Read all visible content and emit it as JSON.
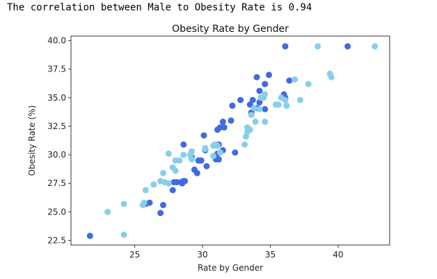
{
  "output_text": "The correlation between Male to Obesity Rate is 0.94",
  "colors": {
    "series_a": "#4169e1",
    "series_b": "#87ceeb",
    "axes": "#333333"
  },
  "chart_data": {
    "type": "scatter",
    "title": "Obesity Rate by Gender",
    "xlabel": "Rate by Gender",
    "ylabel": "Obesity Rate (%)",
    "xlim": [
      20.3,
      43.8
    ],
    "ylim": [
      22.1,
      40.4
    ],
    "xticks": [
      25,
      30,
      35,
      40
    ],
    "yticks": [
      22.5,
      25.0,
      27.5,
      30.0,
      32.5,
      35.0,
      37.5,
      40.0
    ],
    "grid": false,
    "series": [
      {
        "color": "#4169e1",
        "points": [
          [
            21.7,
            22.9
          ],
          [
            25.8,
            25.7
          ],
          [
            26.1,
            25.8
          ],
          [
            26.9,
            24.9
          ],
          [
            27.1,
            25.6
          ],
          [
            27.8,
            26.9
          ],
          [
            27.9,
            27.6
          ],
          [
            28.1,
            27.6
          ],
          [
            28.4,
            27.6
          ],
          [
            28.6,
            27.7
          ],
          [
            28.5,
            27.5
          ],
          [
            28.7,
            27.7
          ],
          [
            29.4,
            28.7
          ],
          [
            29.6,
            28.4
          ],
          [
            29.7,
            29.5
          ],
          [
            29.9,
            29.5
          ],
          [
            30.3,
            29.0
          ],
          [
            29.2,
            29.8
          ],
          [
            30.2,
            30.4
          ],
          [
            31.0,
            29.6
          ],
          [
            31.2,
            29.6
          ],
          [
            31.1,
            30.1
          ],
          [
            31.5,
            30.4
          ],
          [
            32.4,
            30.2
          ],
          [
            31.2,
            30.9
          ],
          [
            28.6,
            30.9
          ],
          [
            30.1,
            31.7
          ],
          [
            31.1,
            32.2
          ],
          [
            31.3,
            32.4
          ],
          [
            31.6,
            32.4
          ],
          [
            32.1,
            33.0
          ],
          [
            31.5,
            32.9
          ],
          [
            32.2,
            34.3
          ],
          [
            32.8,
            34.8
          ],
          [
            33.5,
            34.4
          ],
          [
            33.7,
            34.8
          ],
          [
            34.2,
            34.6
          ],
          [
            34.6,
            34.0
          ],
          [
            34.0,
            34.1
          ],
          [
            33.6,
            33.7
          ],
          [
            34.2,
            35.6
          ],
          [
            34.6,
            36.2
          ],
          [
            34.0,
            36.8
          ],
          [
            34.9,
            37.0
          ],
          [
            36.0,
            35.3
          ],
          [
            36.1,
            35.0
          ],
          [
            36.4,
            36.5
          ],
          [
            36.1,
            39.5
          ],
          [
            40.7,
            39.5
          ]
        ]
      },
      {
        "color": "#87ceeb",
        "points": [
          [
            23.0,
            25.0
          ],
          [
            24.2,
            23.0
          ],
          [
            24.2,
            25.7
          ],
          [
            25.6,
            25.6
          ],
          [
            25.7,
            25.8
          ],
          [
            25.8,
            26.9
          ],
          [
            26.4,
            27.4
          ],
          [
            26.9,
            27.7
          ],
          [
            27.2,
            27.6
          ],
          [
            27.1,
            28.4
          ],
          [
            27.5,
            27.5
          ],
          [
            27.8,
            28.9
          ],
          [
            28.0,
            28.6
          ],
          [
            28.0,
            29.5
          ],
          [
            28.3,
            29.5
          ],
          [
            28.6,
            30.0
          ],
          [
            27.5,
            30.1
          ],
          [
            29.1,
            30.0
          ],
          [
            29.2,
            30.3
          ],
          [
            29.2,
            29.6
          ],
          [
            30.2,
            30.5
          ],
          [
            30.2,
            30.6
          ],
          [
            30.8,
            29.9
          ],
          [
            30.8,
            30.8
          ],
          [
            31.1,
            30.8
          ],
          [
            31.3,
            30.2
          ],
          [
            30.9,
            30.9
          ],
          [
            33.1,
            30.9
          ],
          [
            33.2,
            31.6
          ],
          [
            33.3,
            32.0
          ],
          [
            33.3,
            32.4
          ],
          [
            33.5,
            32.2
          ],
          [
            33.9,
            32.9
          ],
          [
            34.6,
            32.9
          ],
          [
            33.6,
            33.5
          ],
          [
            33.8,
            34.1
          ],
          [
            34.2,
            34.0
          ],
          [
            34.3,
            35.0
          ],
          [
            34.5,
            35.0
          ],
          [
            34.6,
            35.3
          ],
          [
            35.4,
            34.4
          ],
          [
            35.6,
            34.4
          ],
          [
            35.8,
            35.0
          ],
          [
            36.2,
            34.3
          ],
          [
            36.1,
            34.8
          ],
          [
            37.2,
            34.8
          ],
          [
            36.8,
            36.6
          ],
          [
            37.8,
            36.2
          ],
          [
            39.4,
            37.1
          ],
          [
            39.5,
            36.8
          ],
          [
            38.5,
            39.5
          ],
          [
            42.7,
            39.5
          ]
        ]
      }
    ]
  }
}
